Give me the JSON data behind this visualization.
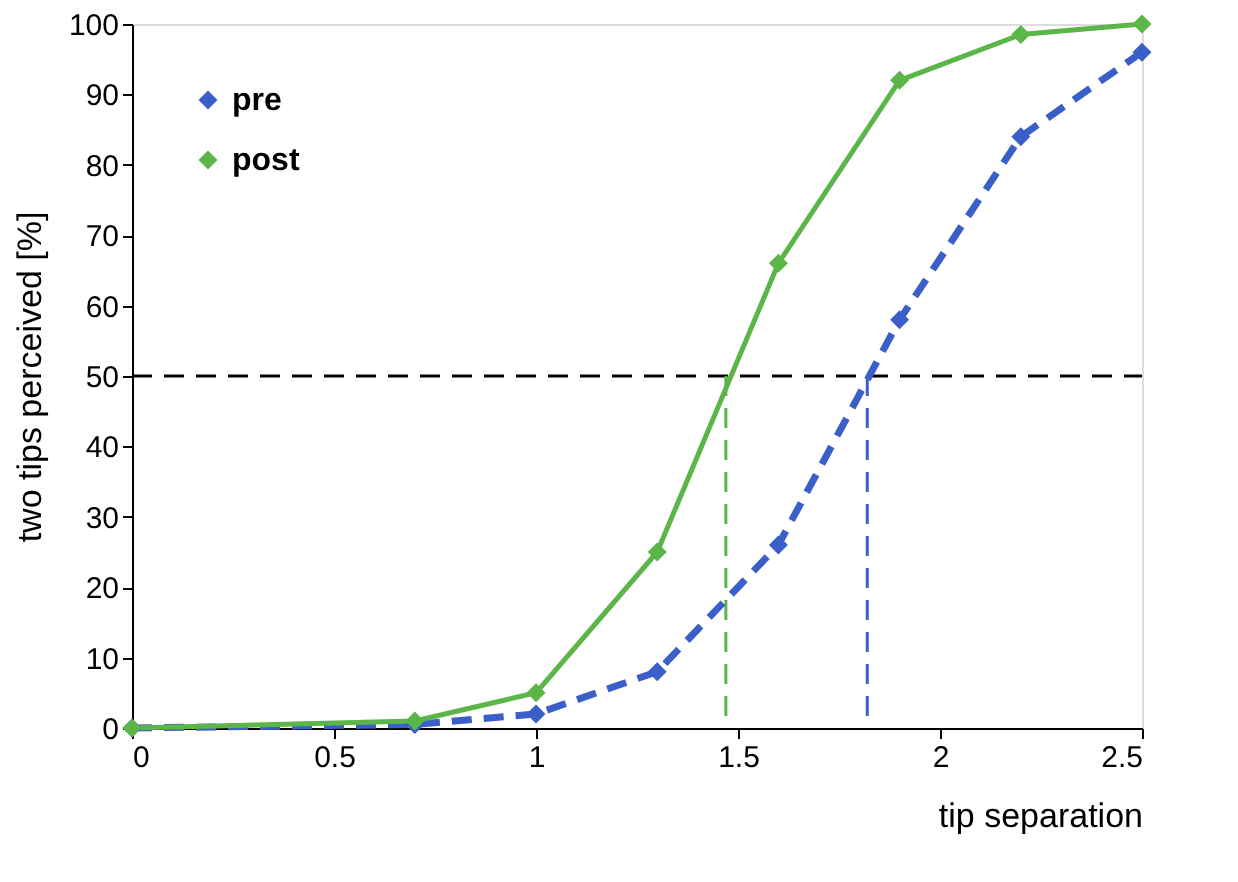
{
  "chart_data": {
    "type": "line",
    "xlabel": "tip separation",
    "ylabel": "two tips perceived [%]",
    "xlim": [
      0,
      2.5
    ],
    "xticks": [
      0,
      0.5,
      1,
      1.5,
      2,
      2.5
    ],
    "ylim": [
      0,
      100
    ],
    "yticks": [
      0,
      10,
      20,
      30,
      40,
      50,
      60,
      70,
      80,
      90,
      100
    ],
    "grid": false,
    "legend": "top left",
    "marker": "diamond",
    "series": [
      {
        "name": "pre",
        "color": "#3b5fc8",
        "line_style": "dashed",
        "x": [
          0,
          0.7,
          1,
          1.3,
          1.6,
          1.9,
          2.2,
          2.5
        ],
        "values": [
          0,
          0.5,
          2,
          8,
          26,
          58,
          84,
          96
        ]
      },
      {
        "name": "post",
        "color": "#5cb548",
        "line_style": "solid",
        "x": [
          0,
          0.7,
          1,
          1.3,
          1.6,
          1.9,
          2.2,
          2.5
        ],
        "values": [
          0,
          1,
          5,
          25,
          66,
          92,
          98.5,
          100
        ]
      }
    ],
    "ref_lines": [
      {
        "axis": "y",
        "value": 50,
        "color": "#000000",
        "line_style": "dashed"
      },
      {
        "axis": "x",
        "value": 1.47,
        "color": "#5cb548",
        "line_style": "dashed"
      },
      {
        "axis": "x",
        "value": 1.82,
        "color": "#3b5fc8",
        "line_style": "dashed"
      }
    ]
  }
}
